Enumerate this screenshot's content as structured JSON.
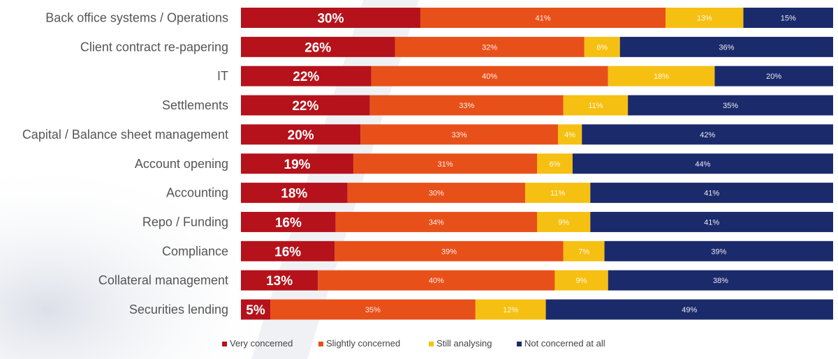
{
  "chart_data": {
    "type": "bar",
    "orientation": "horizontal",
    "stacked": true,
    "unit": "%",
    "categories": [
      "Back office systems / Operations",
      "Client contract re-papering",
      "IT",
      "Settlements",
      "Capital / Balance sheet management",
      "Account opening",
      "Accounting",
      "Repo / Funding",
      "Compliance",
      "Collateral management",
      "Securities lending"
    ],
    "series": [
      {
        "name": "Very concerned",
        "color": "#b5121b",
        "values": [
          30,
          26,
          22,
          22,
          20,
          19,
          18,
          16,
          16,
          13,
          5
        ]
      },
      {
        "name": "Slightly concerned",
        "color": "#e8501a",
        "values": [
          41,
          32,
          40,
          33,
          33,
          31,
          30,
          34,
          39,
          40,
          35
        ]
      },
      {
        "name": "Still analysing",
        "color": "#f5c012",
        "values": [
          13,
          6,
          18,
          11,
          4,
          6,
          11,
          9,
          7,
          9,
          12
        ]
      },
      {
        "name": "Not concerned at all",
        "color": "#1b2a6b",
        "values": [
          15,
          36,
          20,
          35,
          42,
          44,
          41,
          41,
          39,
          38,
          49
        ]
      }
    ],
    "legend": {
      "position": "bottom"
    },
    "grid": false
  }
}
